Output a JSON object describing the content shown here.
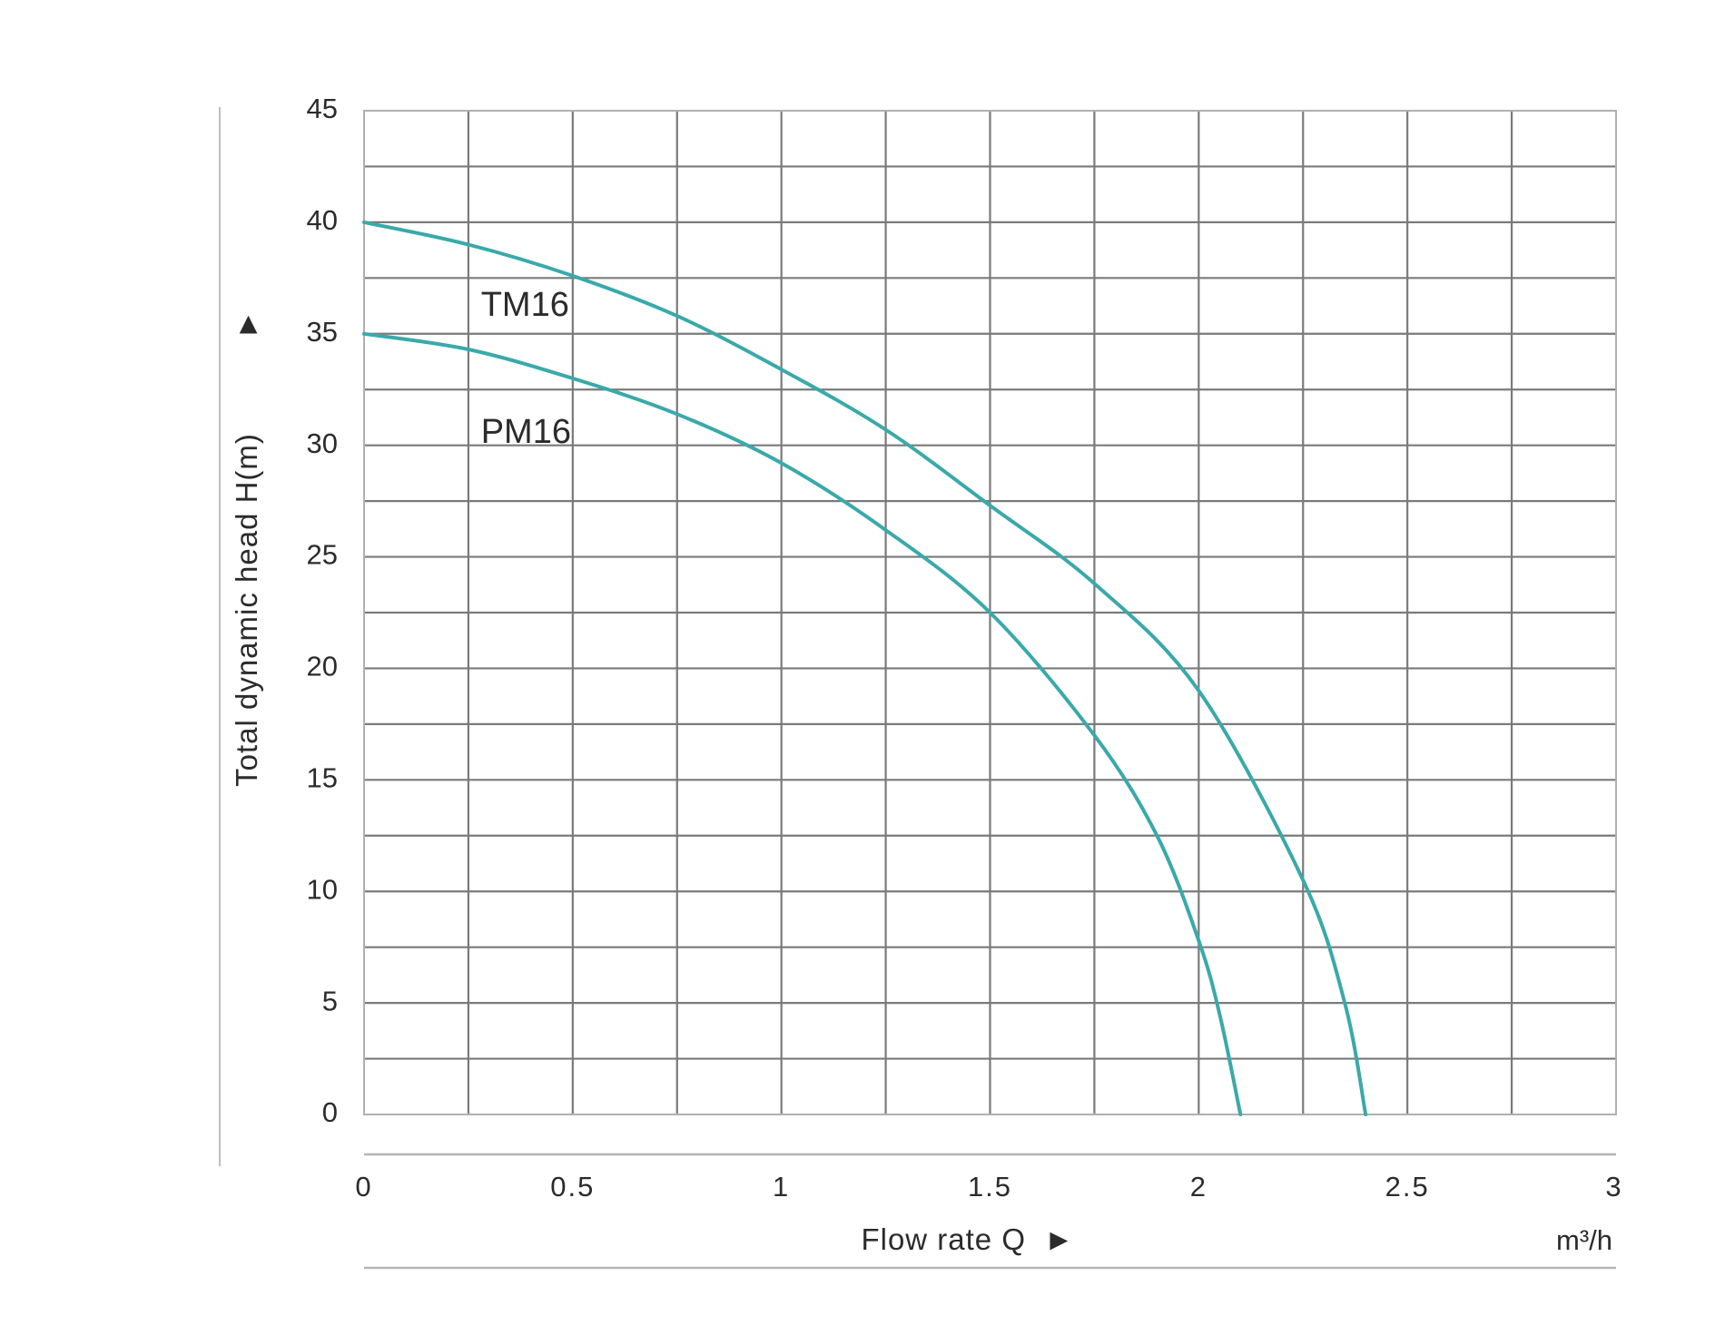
{
  "chart_data": {
    "type": "line",
    "title": "",
    "xlabel": "Flow rate Q",
    "xlabel_arrow": "►",
    "ylabel": "Total dynamic head H(m)",
    "ylabel_arrow": "►",
    "x_unit": "m³/h",
    "xlim": [
      0,
      3
    ],
    "ylim": [
      0,
      45
    ],
    "x_ticks": [
      "0",
      "0.5",
      "1",
      "1.5",
      "2",
      "2.5",
      "3"
    ],
    "y_ticks": [
      "0",
      "5",
      "10",
      "15",
      "20",
      "25",
      "30",
      "35",
      "40",
      "45"
    ],
    "grid": true,
    "legend": "inline labels",
    "series_color": "#3aa9aa",
    "series": [
      {
        "name": "TM16",
        "x": [
          0,
          0.25,
          0.5,
          0.75,
          1.0,
          1.25,
          1.5,
          1.75,
          2.0,
          2.25,
          2.35,
          2.4
        ],
        "y": [
          40,
          39,
          37.6,
          35.8,
          33.4,
          30.7,
          27.3,
          23.8,
          19.0,
          10.5,
          5.0,
          0
        ]
      },
      {
        "name": "PM16",
        "x": [
          0,
          0.25,
          0.5,
          0.75,
          1.0,
          1.25,
          1.5,
          1.75,
          1.9,
          2.0,
          2.05,
          2.1
        ],
        "y": [
          35,
          34.3,
          33.0,
          31.4,
          29.2,
          26.2,
          22.5,
          17.0,
          12.5,
          7.8,
          4.5,
          0
        ]
      }
    ]
  }
}
